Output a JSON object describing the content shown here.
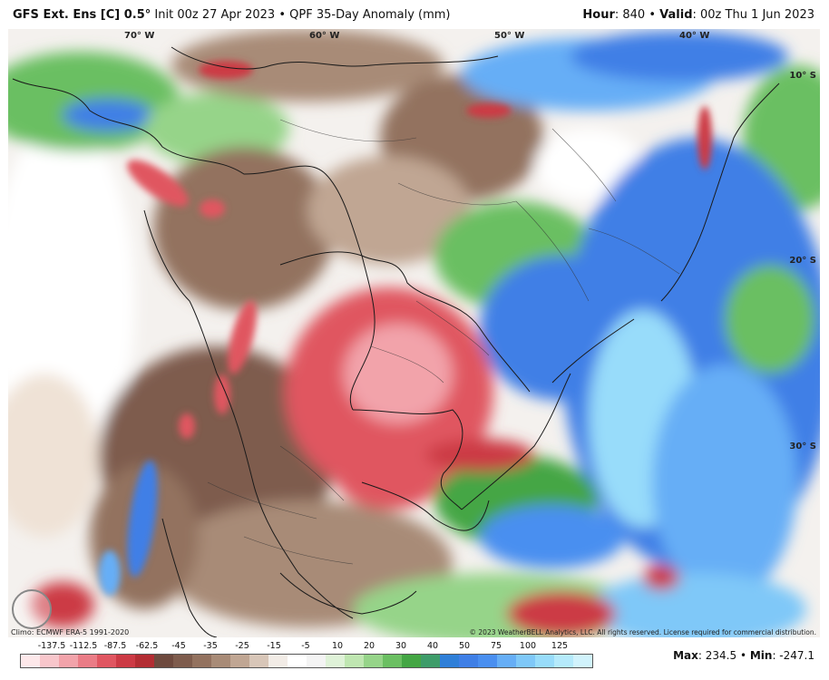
{
  "header": {
    "model": "GFS Ext. Ens [C] 0.5",
    "deg": "°",
    "init": "Init 00z 27 Apr 2023",
    "sep": "•",
    "product": "QPF 35-Day Anomaly (mm)",
    "hour_label": "Hour",
    "hour_value": ": 840",
    "valid_label": "Valid",
    "valid_value": ": 00z Thu 1 Jun 2023"
  },
  "map": {
    "lon_labels": [
      "70° W",
      "60° W",
      "50° W",
      "40° W"
    ],
    "lat_labels": [
      "10° S",
      "20° S",
      "30° S"
    ],
    "logo_text": "WeatherBELL",
    "climo": "Climo: ECMWF ERA-5 1991-2020",
    "copyright": "© 2023 WeatherBELL Analytics, LLC. All rights reserved. License required for commercial distribution."
  },
  "legend": {
    "ticks": [
      "-137.5",
      "-112.5",
      "-87.5",
      "-62.5",
      "-45",
      "-35",
      "-25",
      "-15",
      "-5",
      "10",
      "20",
      "30",
      "40",
      "50",
      "75",
      "100",
      "125"
    ],
    "colors": [
      "#fde8ea",
      "#f8c6cb",
      "#f2a3aa",
      "#ea7c86",
      "#e05661",
      "#cc3a45",
      "#b32d33",
      "#6e4a3e",
      "#7e5c4d",
      "#93725f",
      "#a88b77",
      "#c0a693",
      "#d8c6b8",
      "#f2ece6",
      "#ffffff",
      "#f4f4f4",
      "#dff2d8",
      "#bfe6b1",
      "#96d489",
      "#6bbf62",
      "#44a644",
      "#3e9c6a",
      "#2f7fd8",
      "#3f7fe6",
      "#4a8ff0",
      "#66aef6",
      "#7fc8f8",
      "#98dcfa",
      "#b5eafb",
      "#d1f3fc"
    ],
    "max_label": "Max",
    "max_value": ": 234.5",
    "min_label": "Min",
    "min_value": ": -247.1"
  }
}
